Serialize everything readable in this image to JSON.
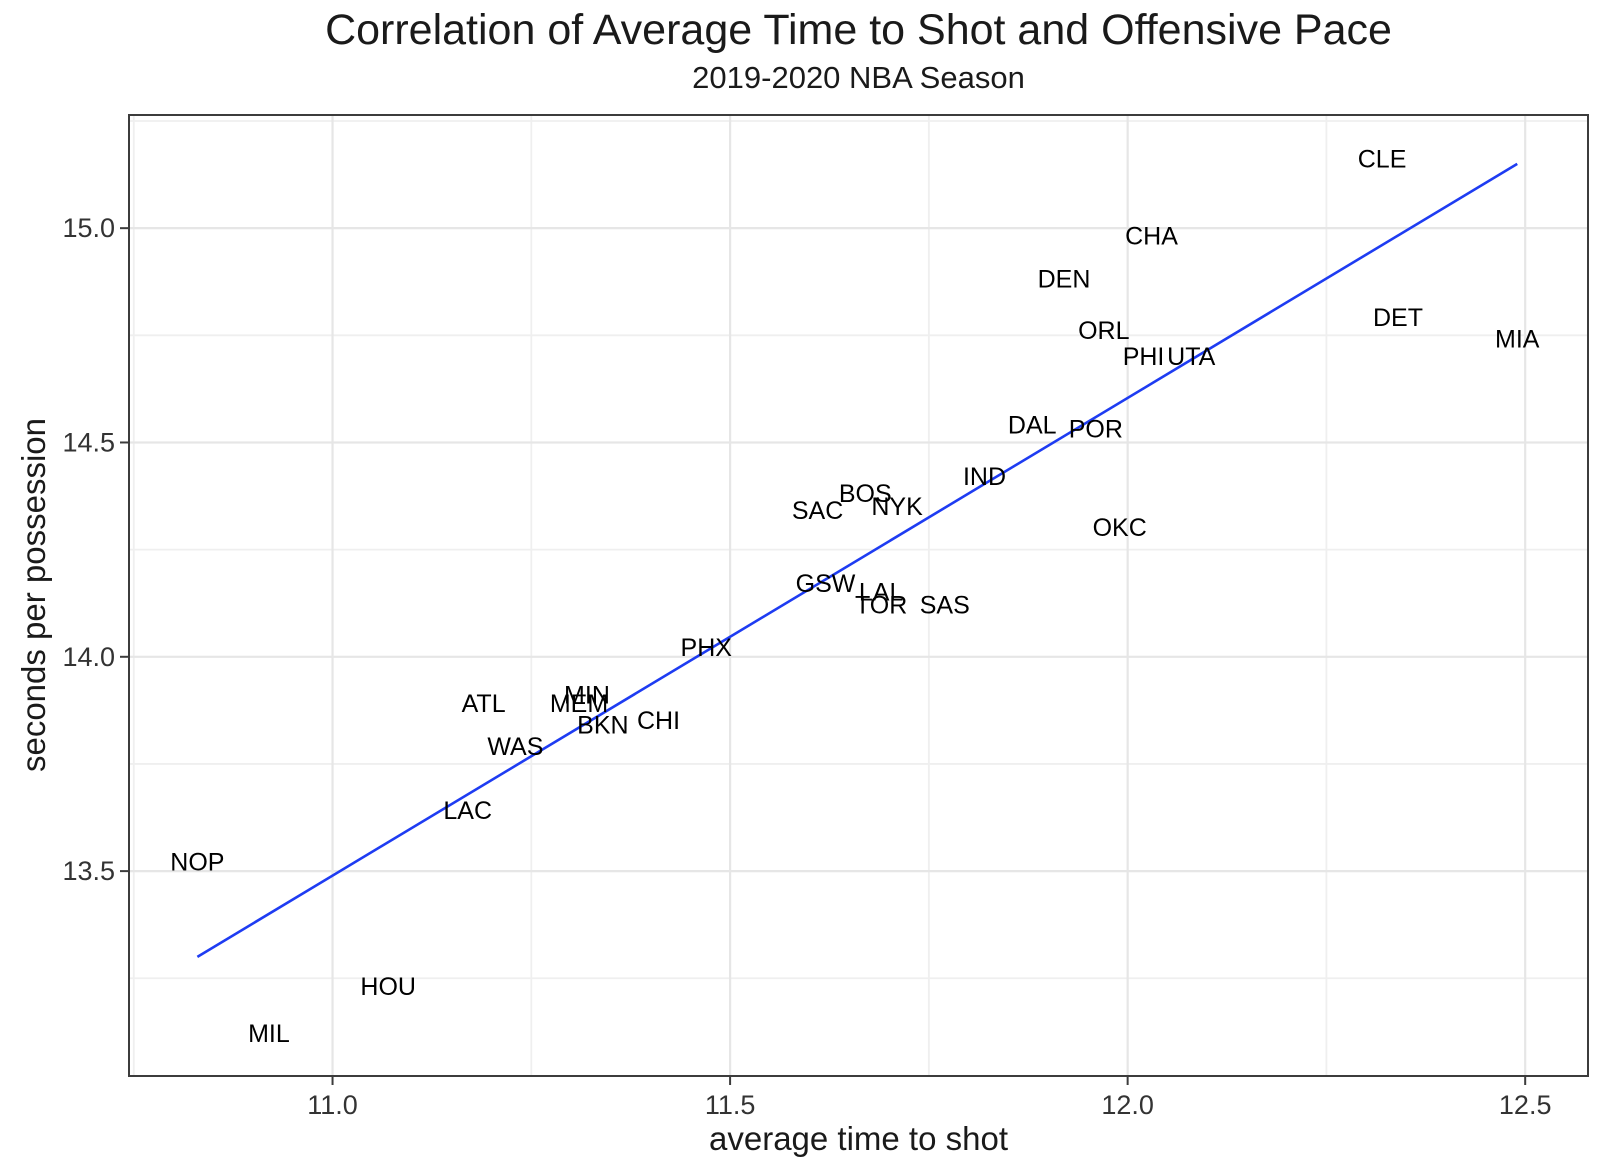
{
  "chart_data": {
    "type": "scatter",
    "title": "Correlation of Average Time to Shot and Offensive Pace",
    "subtitle": "2019-2020 NBA Season",
    "xlabel": "average time to shot",
    "ylabel": "seconds per possession",
    "xlim": [
      10.744,
      12.579
    ],
    "ylim": [
      13.022,
      15.264
    ],
    "x_ticks": [
      {
        "value": 11.0,
        "label": "11.0"
      },
      {
        "value": 11.5,
        "label": "11.5"
      },
      {
        "value": 12.0,
        "label": "12.0"
      },
      {
        "value": 12.5,
        "label": "12.5"
      }
    ],
    "y_ticks": [
      {
        "value": 13.5,
        "label": "13.5"
      },
      {
        "value": 14.0,
        "label": "14.0"
      },
      {
        "value": 14.5,
        "label": "14.5"
      },
      {
        "value": 15.0,
        "label": "15.0"
      }
    ],
    "x_minor_gridlines": [
      10.75,
      11.25,
      11.75,
      12.25
    ],
    "y_minor_gridlines": [
      13.25,
      13.75,
      14.25,
      14.75,
      15.25
    ],
    "grid": "major-and-minor",
    "legend": "none",
    "point_style": "team-abbreviation-text",
    "trend_line": {
      "type": "linear",
      "color": "#1E3CF2",
      "x_start": 10.83,
      "y_start": 13.3,
      "x_end": 12.49,
      "y_end": 15.15
    },
    "points": [
      {
        "team": "NOP",
        "x": 10.83,
        "y": 13.52
      },
      {
        "team": "MIL",
        "x": 10.92,
        "y": 13.12
      },
      {
        "team": "HOU",
        "x": 11.07,
        "y": 13.23
      },
      {
        "team": "LAC",
        "x": 11.17,
        "y": 13.64
      },
      {
        "team": "ATL",
        "x": 11.19,
        "y": 13.89
      },
      {
        "team": "WAS",
        "x": 11.23,
        "y": 13.79
      },
      {
        "team": "MEM",
        "x": 11.31,
        "y": 13.89
      },
      {
        "team": "MIN",
        "x": 11.32,
        "y": 13.91
      },
      {
        "team": "BKN",
        "x": 11.34,
        "y": 13.84
      },
      {
        "team": "CHI",
        "x": 11.41,
        "y": 13.85
      },
      {
        "team": "PHX",
        "x": 11.47,
        "y": 14.02
      },
      {
        "team": "SAC",
        "x": 11.61,
        "y": 14.34
      },
      {
        "team": "GSW",
        "x": 11.62,
        "y": 14.17
      },
      {
        "team": "BOS",
        "x": 11.67,
        "y": 14.38
      },
      {
        "team": "LAL",
        "x": 11.69,
        "y": 14.15
      },
      {
        "team": "TOR",
        "x": 11.69,
        "y": 14.12
      },
      {
        "team": "NYK",
        "x": 11.71,
        "y": 14.35
      },
      {
        "team": "SAS",
        "x": 11.77,
        "y": 14.12
      },
      {
        "team": "IND",
        "x": 11.82,
        "y": 14.42
      },
      {
        "team": "DAL",
        "x": 11.88,
        "y": 14.54
      },
      {
        "team": "DEN",
        "x": 11.92,
        "y": 14.88
      },
      {
        "team": "POR",
        "x": 11.96,
        "y": 14.53
      },
      {
        "team": "ORL",
        "x": 11.97,
        "y": 14.76
      },
      {
        "team": "OKC",
        "x": 11.99,
        "y": 14.3
      },
      {
        "team": "PHI",
        "x": 12.02,
        "y": 14.7
      },
      {
        "team": "CHA",
        "x": 12.03,
        "y": 14.98
      },
      {
        "team": "UTA",
        "x": 12.08,
        "y": 14.7
      },
      {
        "team": "CLE",
        "x": 12.32,
        "y": 15.16
      },
      {
        "team": "DET",
        "x": 12.34,
        "y": 14.79
      },
      {
        "team": "MIA",
        "x": 12.49,
        "y": 14.74
      }
    ]
  },
  "colors": {
    "trend_line": "#1E3CF2",
    "grid_major": "#e6e6e6",
    "grid_minor": "#efefef",
    "panel_border": "#3c3c3c",
    "tick_mark": "#3c3c3c",
    "axis_text": "#333333",
    "point_text": "#000000",
    "title_text": "#1a1a1a",
    "background": "#ffffff"
  }
}
